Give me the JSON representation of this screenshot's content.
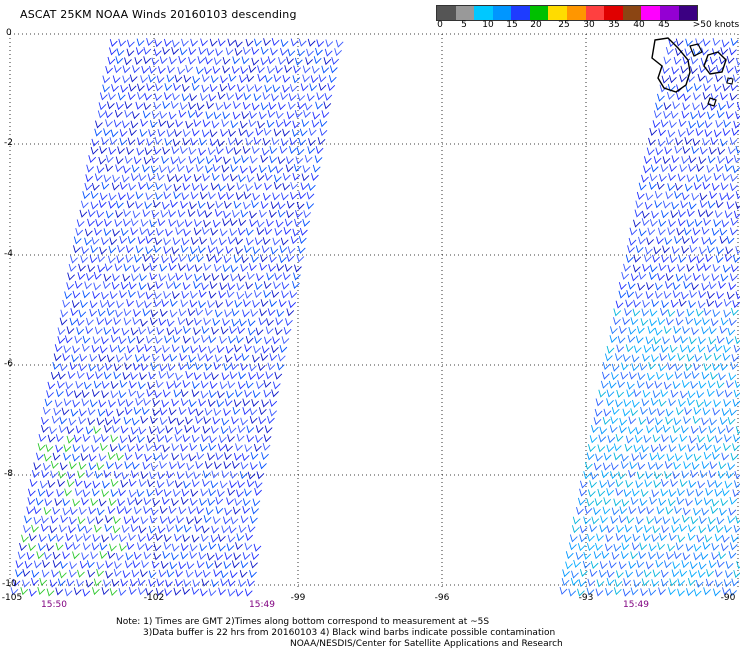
{
  "title": "ASCAT 25KM NOAA Winds 20160103 descending",
  "legend": {
    "swatches": [
      "#555555",
      "#999999",
      "#00c8ff",
      "#0096ff",
      "#1e3cff",
      "#00c000",
      "#ffdc00",
      "#ff9600",
      "#ff4040",
      "#e00000",
      "#8b4513",
      "#ff00ff",
      "#9400d3",
      "#3b0082"
    ],
    "labels": [
      "0",
      "5",
      "10",
      "15",
      "20",
      "25",
      "30",
      "35",
      "40",
      "45",
      ">50 knots"
    ]
  },
  "axes": {
    "lat_labels": [
      "0",
      "-2",
      "-4",
      "-6",
      "-8",
      "-10"
    ],
    "lon_labels": [
      "-105",
      "-102",
      "-99",
      "-96",
      "-93",
      "-90"
    ]
  },
  "pass_times": [
    "15:50",
    "15:49",
    "15:49"
  ],
  "notes": {
    "line1": "Note: 1) Times are GMT 2)Times along bottom correspond to measurement at ~5S",
    "line2": "3)Data buffer is 22 hrs from 20160103 4) Black wind barbs indicate possible contamination",
    "line3": "NOAA/NESDIS/Center for Satellite Applications and Research"
  }
}
